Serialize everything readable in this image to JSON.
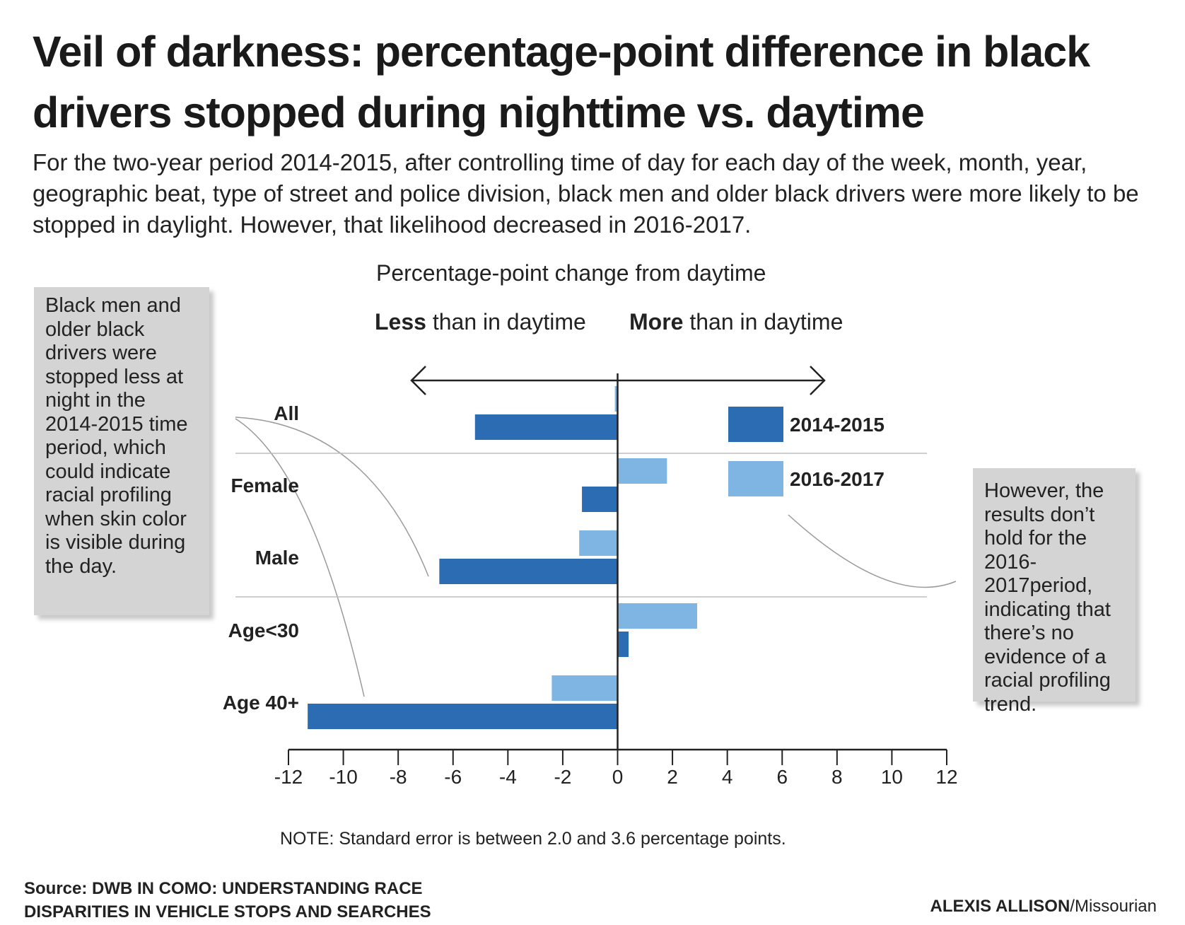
{
  "header": {
    "title": "Veil of darkness: percentage-point difference in black drivers stopped during nighttime vs. daytime",
    "subtitle": "For the two-year period 2014-2015, after controlling time of day for each day of the week, month, year, geographic beat, type of street and police division, black men and older black drivers were more likely to be stopped in daylight. However, that likelihood decreased in 2016-2017."
  },
  "callouts": {
    "left": "Black men and older black drivers were stopped less at night in the 2014-2015 time period, which could indicate racial profiling when skin color is visible during the day.",
    "right": "However, the results don’t hold for the 2016-2017period, indicating that there’s no evidence of a racial profiling trend."
  },
  "direction": {
    "less_bold": "Less",
    "less_rest": " than in daytime",
    "more_bold": "More",
    "more_rest": " than in daytime"
  },
  "footer": {
    "note": "NOTE: Standard error is between 2.0 and 3.6 percentage points.",
    "source_line1": "Source: DWB IN COMO: UNDERSTANDING RACE",
    "source_line2": "DISPARITIES IN VEHICLE STOPS AND SEARCHES",
    "credit_name": "ALEXIS ALLISON",
    "credit_outlet": "/Missourian"
  },
  "colors": {
    "series_2014_2015": "#2b6cb3",
    "series_2016_2017": "#7fb5e2",
    "callout_bg": "#d4d4d4"
  },
  "chart_data": {
    "type": "bar",
    "orientation": "horizontal",
    "title": "Percentage-point change from daytime",
    "categories": [
      "All",
      "Female",
      "Male",
      "Age<30",
      "Age 40+"
    ],
    "series": [
      {
        "name": "2014-2015",
        "values": [
          -5.2,
          -1.3,
          -6.5,
          0.4,
          -11.3
        ]
      },
      {
        "name": "2016-2017",
        "values": [
          -0.1,
          1.8,
          -1.4,
          2.9,
          -2.4
        ]
      }
    ],
    "xlim": [
      -12,
      12
    ],
    "xticks": [
      -12,
      -10,
      -8,
      -6,
      -4,
      -2,
      0,
      2,
      4,
      6,
      8,
      10,
      12
    ],
    "legend_position": "top-right",
    "grid": false
  }
}
